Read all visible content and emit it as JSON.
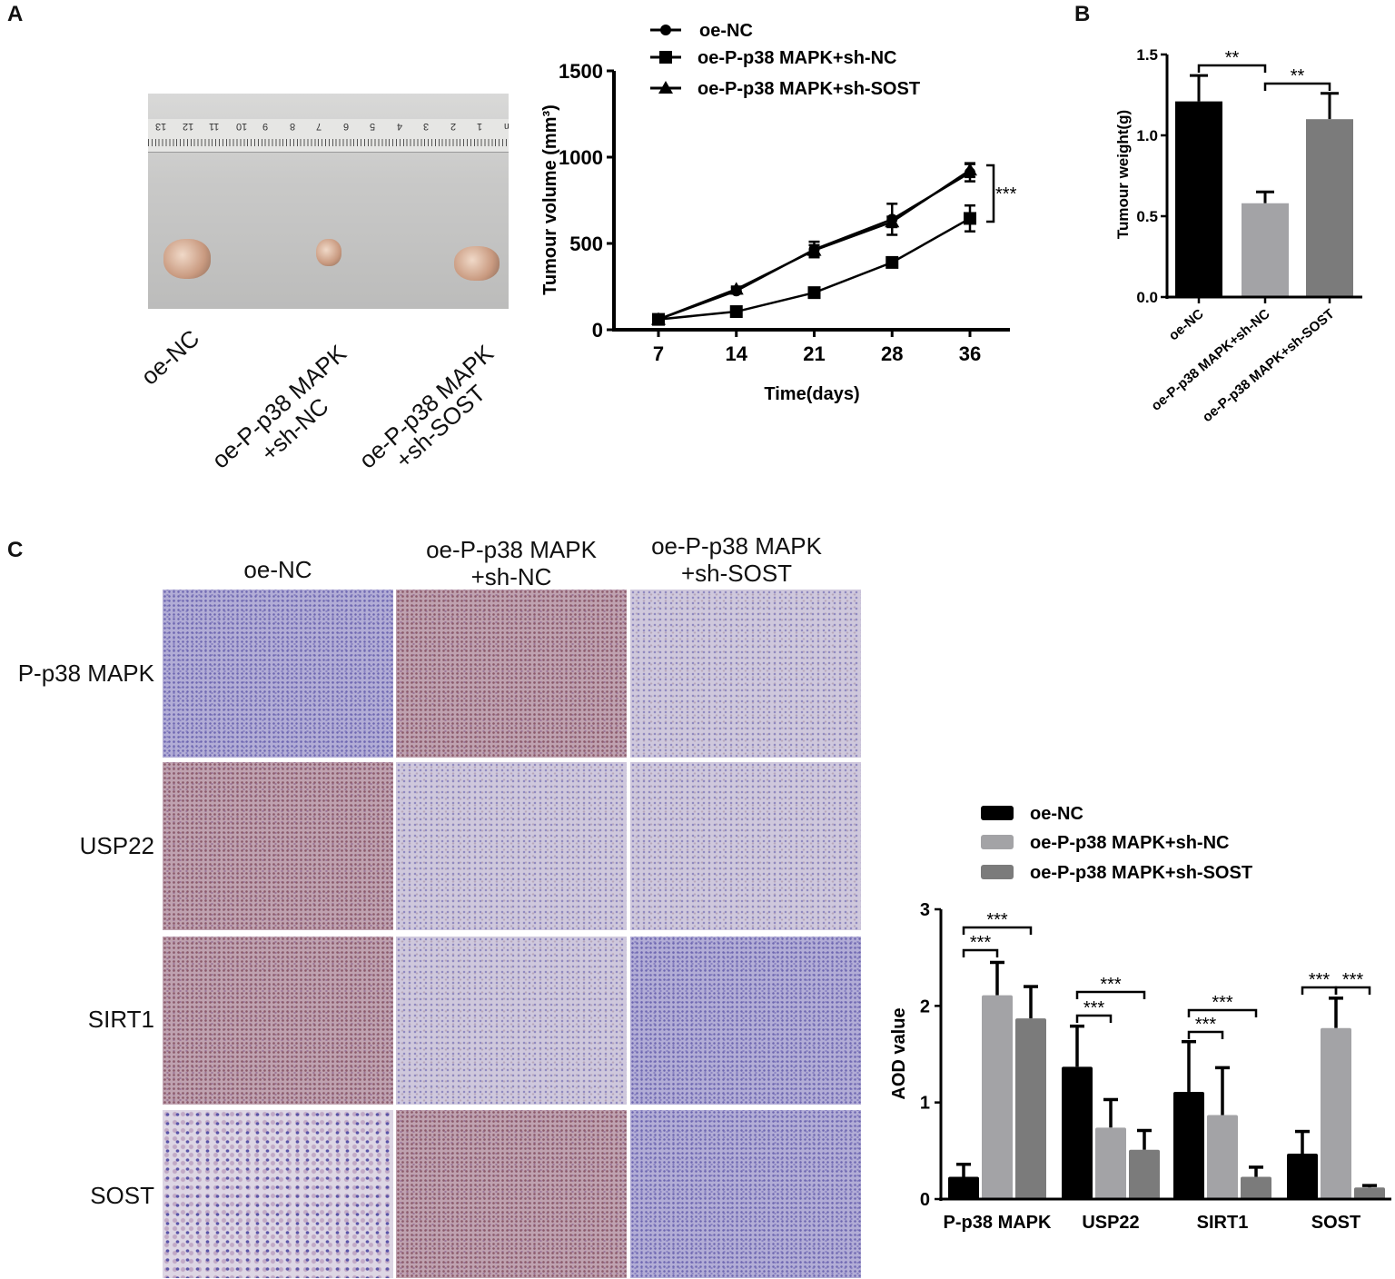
{
  "panels": {
    "a": "A",
    "b": "B",
    "c": "C"
  },
  "photo": {
    "ruler_numbers": [
      "13",
      "12",
      "11",
      "10",
      "9",
      "8",
      "7",
      "6",
      "5",
      "4",
      "3",
      "2",
      "1",
      "cm"
    ],
    "labels": [
      "oe-NC",
      "oe-P-p38 MAPK",
      "+sh-NC",
      "oe-P-p38 MAPK",
      "+sh-SOST"
    ]
  },
  "ihc": {
    "columns": [
      {
        "line1": "oe-NC",
        "line2": ""
      },
      {
        "line1": "oe-P-p38 MAPK",
        "line2": "+sh-NC"
      },
      {
        "line1": "oe-P-p38 MAPK",
        "line2": "+sh-SOST"
      }
    ],
    "rows": [
      "P-p38 MAPK",
      "USP22",
      "SIRT1",
      "SOST"
    ]
  },
  "chart_data": [
    {
      "type": "line",
      "xlabel": "Time(days)",
      "ylabel": "Tumour volume (mm³)",
      "categories": [
        "7",
        "14",
        "21",
        "28",
        "36"
      ],
      "ylim": [
        0,
        1500
      ],
      "yticks": [
        0,
        500,
        1000,
        1500
      ],
      "legend_position": "top",
      "series": [
        {
          "name": "oe-NC",
          "marker": "circle",
          "values": [
            60,
            225,
            465,
            640,
            910
          ],
          "errors": [
            10,
            15,
            45,
            90,
            50
          ]
        },
        {
          "name": "oe-P-p38 MAPK+sh-NC",
          "marker": "square",
          "values": [
            60,
            105,
            215,
            390,
            645
          ],
          "errors": [
            8,
            10,
            15,
            25,
            75
          ]
        },
        {
          "name": "oe-P-p38 MAPK+sh-SOST",
          "marker": "triangle",
          "values": [
            60,
            235,
            460,
            625,
            925
          ],
          "errors": [
            8,
            15,
            30,
            30,
            40
          ]
        }
      ],
      "annotations": [
        {
          "text": "***",
          "between": [
            "oe-NC",
            "oe-P-p38 MAPK+sh-NC"
          ],
          "at": "36"
        }
      ],
      "color": "#000000"
    },
    {
      "type": "bar",
      "ylabel": "Tumour weight(g)",
      "categories": [
        "oe-NC",
        "oe-P-p38 MAPK+sh-NC",
        "oe-P-p38 MAPK+sh-SOST"
      ],
      "values": [
        1.21,
        0.58,
        1.1
      ],
      "errors": [
        0.16,
        0.07,
        0.16
      ],
      "colors": [
        "#000000",
        "#a3a3a6",
        "#7b7b7b"
      ],
      "ylim": [
        0,
        1.5
      ],
      "yticks": [
        "0.0",
        "0.5",
        "1.0",
        "1.5"
      ],
      "annotations": [
        {
          "text": "**",
          "from": 0,
          "to": 1
        },
        {
          "text": "**",
          "from": 1,
          "to": 2
        }
      ]
    },
    {
      "type": "bar",
      "ylabel": "AOD value",
      "categories": [
        "P-p38 MAPK",
        "USP22",
        "SIRT1",
        "SOST"
      ],
      "ylim": [
        0,
        3
      ],
      "yticks": [
        "0",
        "1",
        "2",
        "3"
      ],
      "legend_position": "top-right",
      "series": [
        {
          "name": "oe-NC",
          "color": "#000000",
          "values": [
            0.23,
            1.37,
            1.11,
            0.47
          ],
          "errors": [
            0.13,
            0.42,
            0.52,
            0.23
          ]
        },
        {
          "name": "oe-P-p38 MAPK+sh-NC",
          "color": "#a3a3a6",
          "values": [
            2.11,
            0.74,
            0.87,
            1.77
          ],
          "errors": [
            0.34,
            0.29,
            0.49,
            0.31
          ]
        },
        {
          "name": "oe-P-p38 MAPK+sh-SOST",
          "color": "#7b7b7b",
          "values": [
            1.87,
            0.51,
            0.23,
            0.12
          ],
          "errors": [
            0.33,
            0.2,
            0.1,
            0.02
          ]
        }
      ],
      "annotations": [
        {
          "text": "***",
          "group": 0,
          "from": 0,
          "to": 1
        },
        {
          "text": "***",
          "group": 0,
          "from": 0,
          "to": 2
        },
        {
          "text": "***",
          "group": 1,
          "from": 0,
          "to": 1
        },
        {
          "text": "***",
          "group": 1,
          "from": 0,
          "to": 2
        },
        {
          "text": "***",
          "group": 2,
          "from": 0,
          "to": 1
        },
        {
          "text": "***",
          "group": 2,
          "from": 0,
          "to": 2
        },
        {
          "text": "***",
          "group": 3,
          "from": 0,
          "to": 1
        },
        {
          "text": "***",
          "group": 3,
          "from": 1,
          "to": 2
        }
      ]
    }
  ]
}
